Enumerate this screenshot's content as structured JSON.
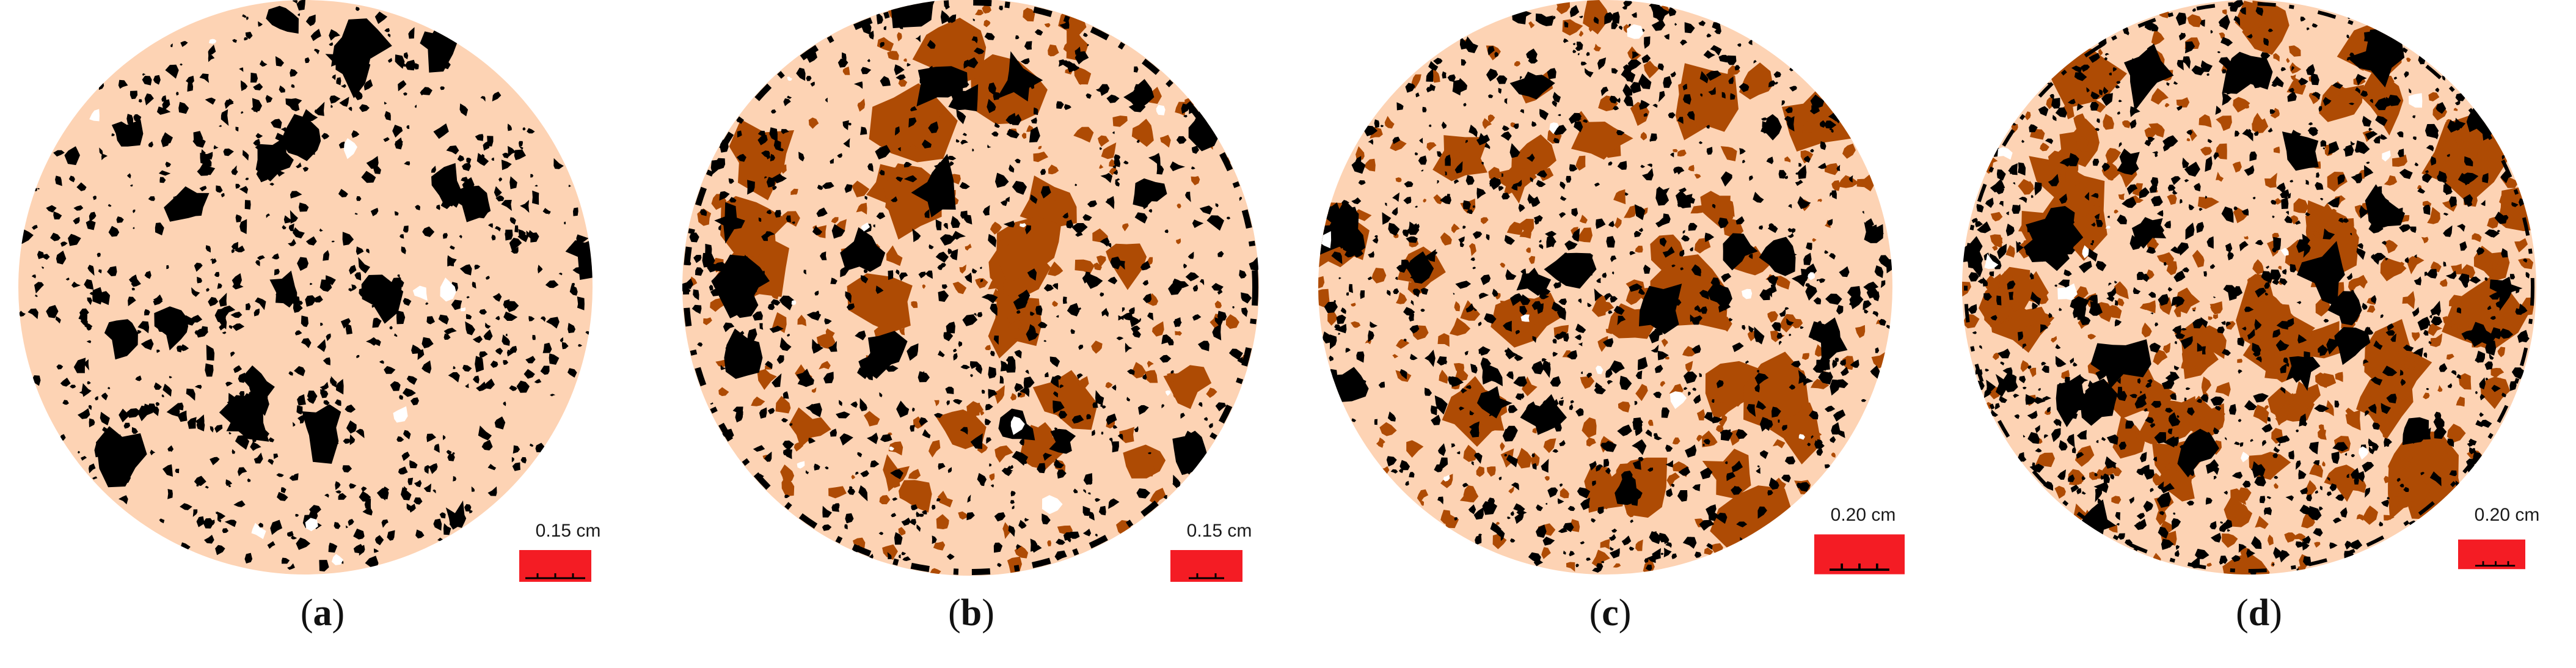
{
  "colors": {
    "matrix": "#FDD3B4",
    "pore": "#000000",
    "aggregate": "#AE4B04",
    "void_white": "#FFFFFF",
    "scale_bar": "#F41C24"
  },
  "panels": [
    {
      "id": "a",
      "caption_open": "(",
      "caption_letter": "a",
      "caption_close": ")",
      "scale_label": "0.15 cm",
      "pore_density": 0.55,
      "aggregate_density": 0.0
    },
    {
      "id": "b",
      "caption_open": "(",
      "caption_letter": "b",
      "caption_close": ")",
      "scale_label": "0.15 cm",
      "pore_density": 0.45,
      "aggregate_density": 0.45
    },
    {
      "id": "c",
      "caption_open": "(",
      "caption_letter": "c",
      "caption_close": ")",
      "scale_label": "0.20 cm",
      "pore_density": 0.6,
      "aggregate_density": 0.55
    },
    {
      "id": "d",
      "caption_open": "(",
      "caption_letter": "d",
      "caption_close": ")",
      "scale_label": "0.20 cm",
      "pore_density": 0.65,
      "aggregate_density": 0.85
    }
  ]
}
